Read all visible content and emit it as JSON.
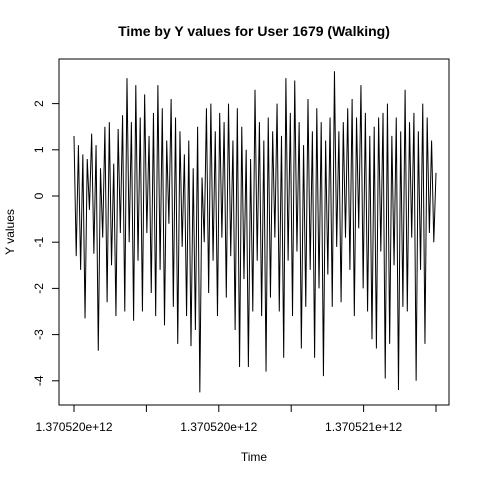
{
  "chart_data": {
    "type": "line",
    "title": "Time by Y values for User 1679 (Walking)",
    "xlabel": "Time",
    "ylabel": "Y values",
    "x_tick_labels": [
      "1.370520e+12",
      "1.370520e+12",
      "1.370521e+12"
    ],
    "x_tick_count": 6,
    "y_ticks": [
      -4,
      -3,
      -2,
      -1,
      0,
      1,
      2
    ],
    "ylim": [
      -4.5,
      3.0
    ],
    "grid": false,
    "legend": "none",
    "line_color": "#000000",
    "series": [
      {
        "values": [
          1.3,
          -1.3,
          1.1,
          -1.6,
          0.9,
          -2.65,
          0.8,
          -0.3,
          1.35,
          -1.25,
          1.1,
          -3.35,
          0.6,
          -0.9,
          1.5,
          -2.3,
          1.6,
          -1.5,
          0.7,
          -2.6,
          1.45,
          -0.8,
          1.75,
          -2.5,
          2.55,
          -1.0,
          1.6,
          -2.7,
          2.4,
          -1.4,
          1.7,
          -2.5,
          2.2,
          -0.8,
          1.3,
          -2.1,
          1.8,
          -2.6,
          2.4,
          -1.6,
          1.9,
          -2.8,
          1.2,
          -0.6,
          2.1,
          -2.4,
          1.7,
          -3.2,
          1.4,
          -1.1,
          0.9,
          -2.6,
          1.2,
          -3.25,
          0.6,
          -2.9,
          1.5,
          -4.25,
          0.4,
          -1.0,
          1.9,
          -2.1,
          2.0,
          -1.4,
          1.4,
          -2.6,
          1.8,
          -0.9,
          1.6,
          -2.2,
          2.0,
          -1.3,
          1.2,
          -2.9,
          1.9,
          -3.7,
          1.5,
          -1.8,
          1.0,
          -3.7,
          0.8,
          -2.5,
          2.3,
          -1.4,
          1.6,
          -2.6,
          1.2,
          -3.8,
          1.7,
          -2.2,
          1.4,
          -0.9,
          2.0,
          -2.5,
          1.3,
          -3.5,
          2.55,
          -1.4,
          1.8,
          -2.6,
          2.5,
          -1.2,
          1.6,
          -3.3,
          1.1,
          -2.4,
          2.1,
          -1.6,
          1.4,
          -3.5,
          1.9,
          -2.0,
          1.6,
          -3.9,
          1.2,
          -1.7,
          1.7,
          -2.4,
          2.7,
          -1.1,
          1.4,
          -2.3,
          1.6,
          -0.9,
          1.9,
          -1.6,
          2.1,
          -2.6,
          1.7,
          -0.7,
          2.4,
          -2.0,
          1.8,
          -2.5,
          1.3,
          -3.1,
          1.5,
          -3.3,
          1.7,
          -1.2,
          1.8,
          -3.95,
          2.0,
          -3.2,
          1.3,
          -1.5,
          1.7,
          -4.2,
          1.4,
          -2.4,
          2.3,
          -2.5,
          1.6,
          -0.9,
          1.8,
          -4.0,
          1.4,
          -1.6,
          2.0,
          -3.2,
          1.7,
          -0.8,
          1.2,
          -1.0,
          0.5
        ]
      }
    ]
  }
}
